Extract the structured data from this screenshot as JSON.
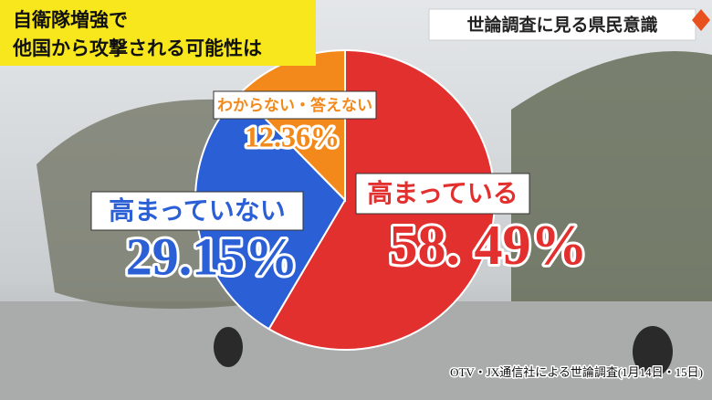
{
  "chart_data": {
    "type": "pie",
    "title": [
      "自衛隊増強で",
      "他国から攻撃される可能性は"
    ],
    "badge": "世論調査に見る県民意識",
    "source": "OTV・JX通信社による世論調査(1月14日・15日)",
    "categories": [
      "高まっている",
      "高まっていない",
      "わからない・答えない"
    ],
    "values": [
      58.49,
      29.15,
      12.36
    ],
    "value_labels": [
      "58. 49%",
      "29.15%",
      "12.36%"
    ],
    "colors": [
      "#e2302f",
      "#2a5fd6",
      "#f2891a"
    ]
  }
}
